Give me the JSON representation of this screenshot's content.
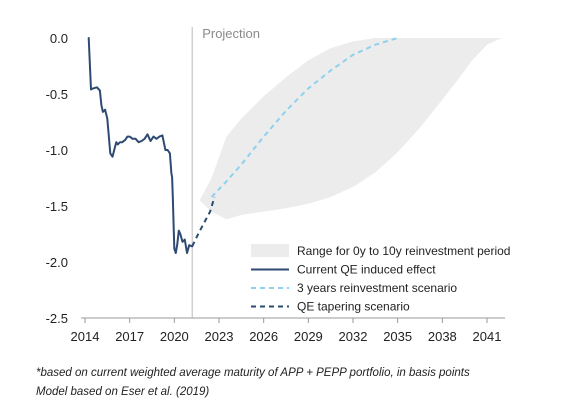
{
  "chart_data": {
    "type": "line",
    "title": "",
    "xlabel": "",
    "ylabel": "",
    "xlim": [
      2014,
      2042.5
    ],
    "ylim": [
      -2.5,
      0.1
    ],
    "x_ticks": [
      2014,
      2017,
      2020,
      2023,
      2026,
      2029,
      2032,
      2035,
      2038,
      2041
    ],
    "x_tick_labels": [
      "2014",
      "2017",
      "2020",
      "2023",
      "2026",
      "2029",
      "2032",
      "2035",
      "2038",
      "2041"
    ],
    "y_ticks": [
      0.0,
      -0.5,
      -1.0,
      -1.5,
      -2.0,
      -2.5
    ],
    "y_tick_labels": [
      "0.0",
      "-0.5",
      "-1.0",
      "-1.5",
      "-2.0",
      "-2.5"
    ],
    "grid": false,
    "legend_position": "bottom-right",
    "projection_marker": {
      "x": 2021.2,
      "label": "Projection",
      "color": "#bbbbbb"
    },
    "range_band": {
      "name": "Range for 0y to 10y reinvestment period",
      "color": "#ececec",
      "x": [
        2021.7,
        2022.5,
        2023.5,
        2024.5,
        2026,
        2027.5,
        2029,
        2030.5,
        2032,
        2033.5,
        2035,
        2036.5,
        2038,
        2039,
        2040,
        2041,
        2042
      ],
      "upper": [
        -1.45,
        -1.25,
        -0.88,
        -0.72,
        -0.52,
        -0.35,
        -0.2,
        -0.09,
        -0.03,
        0.0,
        0.0,
        0.0,
        0.0,
        0.0,
        0.0,
        0.0,
        0.0
      ],
      "lower": [
        -1.45,
        -1.55,
        -1.62,
        -1.58,
        -1.55,
        -1.52,
        -1.48,
        -1.42,
        -1.33,
        -1.2,
        -1.02,
        -0.8,
        -0.55,
        -0.38,
        -0.2,
        -0.06,
        0.0
      ]
    },
    "series": [
      {
        "name": "Current QE induced effect",
        "color": "#2e4a72",
        "dash": "solid",
        "x": [
          2014.25,
          2014.4,
          2014.55,
          2014.8,
          2015.0,
          2015.1,
          2015.2,
          2015.35,
          2015.5,
          2015.7,
          2015.85,
          2016.0,
          2016.1,
          2016.2,
          2016.35,
          2016.5,
          2016.7,
          2016.85,
          2017.0,
          2017.2,
          2017.4,
          2017.6,
          2017.8,
          2018.0,
          2018.2,
          2018.4,
          2018.6,
          2018.8,
          2019.0,
          2019.2,
          2019.4,
          2019.55,
          2019.7,
          2019.8,
          2019.85,
          2019.9,
          2020.0,
          2020.1,
          2020.2,
          2020.3,
          2020.4,
          2020.55,
          2020.7,
          2020.85,
          2021.0,
          2021.2
        ],
        "y": [
          0.0,
          -0.46,
          -0.45,
          -0.44,
          -0.47,
          -0.6,
          -0.66,
          -0.64,
          -0.72,
          -1.03,
          -1.06,
          -0.98,
          -0.93,
          -0.95,
          -0.93,
          -0.93,
          -0.91,
          -0.88,
          -0.88,
          -0.9,
          -0.9,
          -0.93,
          -0.92,
          -0.9,
          -0.86,
          -0.92,
          -0.88,
          -0.9,
          -0.88,
          -0.87,
          -1.0,
          -1.0,
          -1.03,
          -1.21,
          -1.24,
          -1.42,
          -1.88,
          -1.92,
          -1.84,
          -1.72,
          -1.75,
          -1.82,
          -1.8,
          -1.92,
          -1.85,
          -1.86
        ]
      },
      {
        "name": "3 years reinvestment scenario",
        "color": "#8fd0ee",
        "dash": "dashed",
        "x": [
          2022.5,
          2023.5,
          2024.5,
          2026,
          2027.5,
          2029,
          2030.5,
          2032,
          2033.5,
          2035
        ],
        "y": [
          -1.42,
          -1.28,
          -1.13,
          -0.88,
          -0.65,
          -0.45,
          -0.29,
          -0.15,
          -0.06,
          0.0
        ]
      },
      {
        "name": "QE tapering scenario",
        "color": "#2e4a72",
        "dash": "dashed",
        "x": [
          2021.2,
          2021.6,
          2022.0,
          2022.4,
          2022.7
        ],
        "y": [
          -1.86,
          -1.75,
          -1.65,
          -1.55,
          -1.42
        ]
      }
    ]
  },
  "footnotes": {
    "line1": "*based on current weighted average maturity of APP + PEPP portfolio, in basis points",
    "line2": "Model based on Eser et al. (2019)"
  }
}
